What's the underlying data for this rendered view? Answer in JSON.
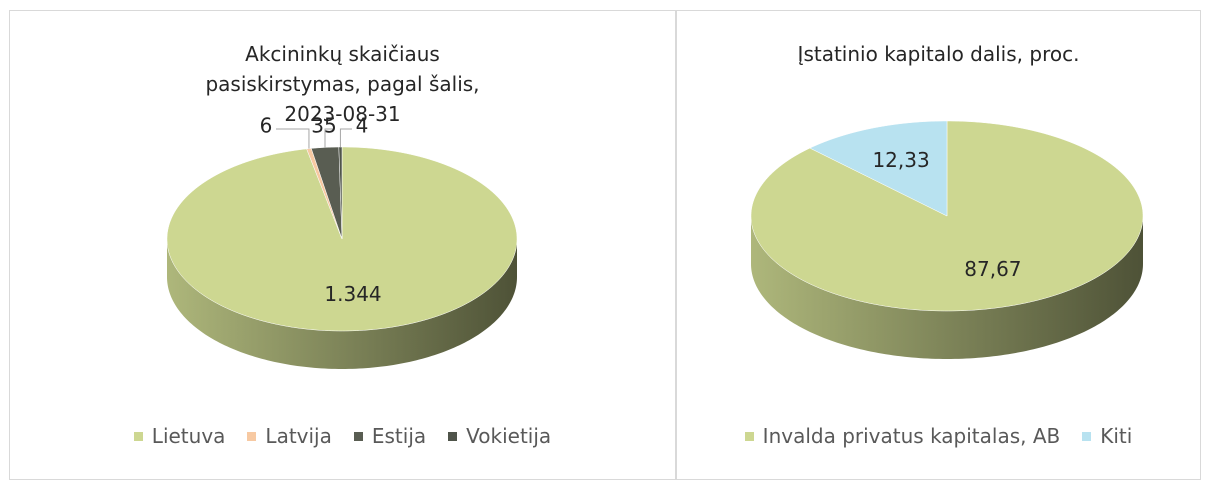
{
  "chart_data": [
    {
      "type": "pie",
      "title": "Akcininkų skaičiaus pasiskirstymas, pagal šalis, 2023-08-31",
      "categories": [
        "Lietuva",
        "Latvija",
        "Estija",
        "Vokietija"
      ],
      "values": [
        1344,
        6,
        35,
        4
      ],
      "value_labels": [
        "1.344",
        "6",
        "35",
        "4"
      ],
      "colors": [
        "#cdd791",
        "#f7c9a2",
        "#595d52",
        "#4f544a"
      ],
      "legend": "bottom"
    },
    {
      "type": "pie",
      "title": "Įstatinio kapitalo dalis, proc.",
      "categories": [
        "Invalda privatus kapitalas, AB",
        "Kiti"
      ],
      "values": [
        87.67,
        12.33
      ],
      "value_labels": [
        "87,67",
        "12,33"
      ],
      "colors": [
        "#cdd791",
        "#b8e2f0"
      ],
      "legend": "bottom"
    }
  ]
}
